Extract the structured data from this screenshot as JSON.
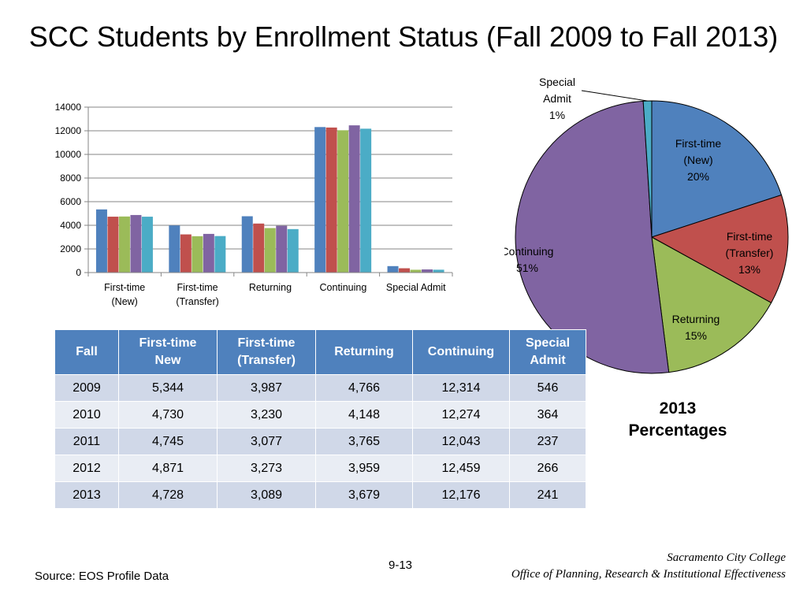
{
  "title": "SCC Students by Enrollment Status (Fall 2009 to Fall 2013)",
  "colors": {
    "series": [
      "#4f81bd",
      "#c0504d",
      "#9bbb59",
      "#8064a2",
      "#4bacc6"
    ],
    "pie": {
      "First-time (New)": "#4f81bd",
      "First-time (Transfer)": "#c0504d",
      "Returning": "#9bbb59",
      "Continuing": "#8064a2",
      "Special Admit": "#4bacc6"
    },
    "table_header": "#4f81bd"
  },
  "chart_data": [
    {
      "type": "bar",
      "categories": [
        "First-time (New)",
        "First-time (Transfer)",
        "Returning",
        "Continuing",
        "Special Admit"
      ],
      "category_labels": [
        [
          "First-time",
          "(New)"
        ],
        [
          "First-time",
          "(Transfer)"
        ],
        [
          "Returning"
        ],
        [
          "Continuing"
        ],
        [
          "Special Admit"
        ]
      ],
      "series": [
        {
          "values": [
            5344,
            3987,
            4766,
            12314,
            546
          ]
        },
        {
          "values": [
            4730,
            3230,
            4148,
            12274,
            364
          ]
        },
        {
          "values": [
            4745,
            3077,
            3765,
            12043,
            237
          ]
        },
        {
          "values": [
            4871,
            3273,
            3959,
            12459,
            266
          ]
        },
        {
          "values": [
            4728,
            3089,
            3679,
            12176,
            241
          ]
        }
      ],
      "ylim": [
        0,
        14000
      ],
      "yticks": [
        "0",
        "2000",
        "4000",
        "6000",
        "8000",
        "10000",
        "12000",
        "14000"
      ],
      "grid": true,
      "legend": "none"
    },
    {
      "type": "pie",
      "slices": [
        {
          "label": "First-time (New)",
          "label_lines": [
            "First-time",
            "(New)",
            "20%"
          ],
          "value": 20
        },
        {
          "label": "First-time (Transfer)",
          "label_lines": [
            "First-time",
            "(Transfer)",
            "13%"
          ],
          "value": 13
        },
        {
          "label": "Returning",
          "label_lines": [
            "Returning",
            "15%"
          ],
          "value": 15
        },
        {
          "label": "Continuing",
          "label_lines": [
            "Continuing",
            "51%"
          ],
          "value": 51
        },
        {
          "label": "Special Admit",
          "label_lines": [
            "Special",
            "Admit",
            "1%"
          ],
          "value": 1
        }
      ],
      "subtitle": [
        "2013",
        "Percentages"
      ]
    }
  ],
  "table": {
    "headers": [
      "Fall",
      "First-time New",
      "First-time (Transfer)",
      "Returning",
      "Continuing",
      "Special Admit"
    ],
    "header_lines": [
      [
        "Fall"
      ],
      [
        "First-time",
        "New"
      ],
      [
        "First-time",
        "(Transfer)"
      ],
      [
        "Returning"
      ],
      [
        "Continuing"
      ],
      [
        "Special",
        "Admit"
      ]
    ],
    "rows": [
      [
        "2009",
        "5,344",
        "3,987",
        "4,766",
        "12,314",
        "546"
      ],
      [
        "2010",
        "4,730",
        "3,230",
        "4,148",
        "12,274",
        "364"
      ],
      [
        "2011",
        "4,745",
        "3,077",
        "3,765",
        "12,043",
        "237"
      ],
      [
        "2012",
        "4,871",
        "3,273",
        "3,959",
        "12,459",
        "266"
      ],
      [
        "2013",
        "4,728",
        "3,089",
        "3,679",
        "12,176",
        "241"
      ]
    ]
  },
  "footer": {
    "page_number": "9-13",
    "source": "Source: EOS Profile Data",
    "college_name": "Sacramento City College",
    "office": "Office of Planning, Research & Institutional Effectiveness"
  }
}
